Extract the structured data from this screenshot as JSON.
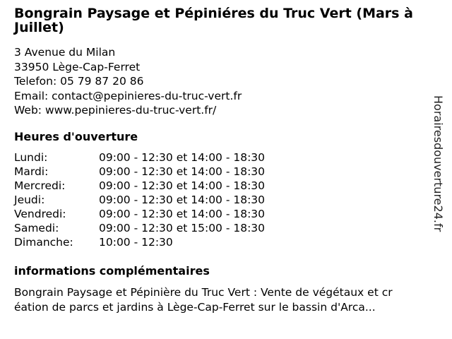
{
  "business": {
    "title": "Bongrain Paysage et Pépiniéres du Truc Vert (Mars à Juillet)",
    "address_line1": "3 Avenue du Milan",
    "address_line2": "33950 Lège-Cap-Ferret",
    "phone": "Telefon: 05 79 87 20 86",
    "email": "Email: contact@pepinieres-du-truc-vert.fr",
    "web": "Web: www.pepinieres-du-truc-vert.fr/"
  },
  "hours": {
    "heading": "Heures d'ouverture",
    "rows": [
      {
        "day": "Lundi:",
        "time": "09:00 - 12:30 et 14:00 - 18:30"
      },
      {
        "day": "Mardi:",
        "time": "09:00 - 12:30 et 14:00 - 18:30"
      },
      {
        "day": "Mercredi:",
        "time": "09:00 - 12:30 et 14:00 - 18:30"
      },
      {
        "day": "Jeudi:",
        "time": "09:00 - 12:30 et 14:00 - 18:30"
      },
      {
        "day": "Vendredi:",
        "time": "09:00 - 12:30 et 14:00 - 18:30"
      },
      {
        "day": "Samedi:",
        "time": "09:00 - 12:30 et 15:00 - 18:30"
      },
      {
        "day": "Dimanche:",
        "time": "10:00 - 12:30"
      }
    ]
  },
  "info": {
    "heading": "informations complémentaires",
    "description_line1": "Bongrain Paysage et Pépinière du Truc Vert : Vente de végétaux et cr",
    "description_line2": "éation de parcs et jardins à Lège-Cap-Ferret sur le bassin d'Arca..."
  },
  "watermark": "Horairesdouverture24.fr"
}
